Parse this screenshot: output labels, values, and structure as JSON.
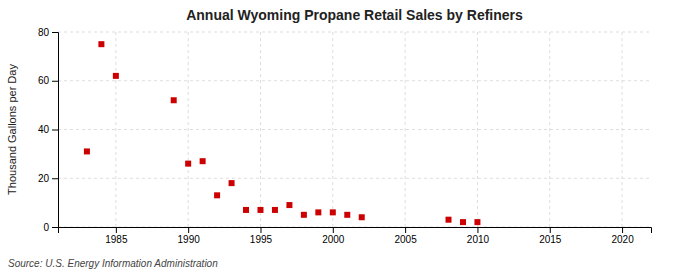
{
  "chart_data": {
    "type": "scatter",
    "title": "Annual Wyoming Propane Retail Sales by Refiners",
    "ylabel": "Thousand Gallons per Day",
    "source": "Source: U.S. Energy Information Administration",
    "x": [
      1983,
      1984,
      1985,
      1989,
      1990,
      1991,
      1992,
      1993,
      1994,
      1995,
      1996,
      1997,
      1998,
      1999,
      2000,
      2001,
      2002,
      2008,
      2009,
      2010
    ],
    "values": [
      31,
      75,
      62,
      52,
      26,
      27,
      13,
      18,
      7,
      7,
      7,
      9,
      5,
      6,
      6,
      5,
      4,
      3,
      2,
      2
    ],
    "color": "#cc0000",
    "marker": "square",
    "xlim": [
      1981,
      2022
    ],
    "ylim": [
      0,
      80
    ],
    "xticks": [
      1985,
      1990,
      1995,
      2000,
      2005,
      2010,
      2015,
      2020
    ],
    "yticks": [
      0,
      20,
      40,
      60,
      80
    ],
    "grid": true
  }
}
